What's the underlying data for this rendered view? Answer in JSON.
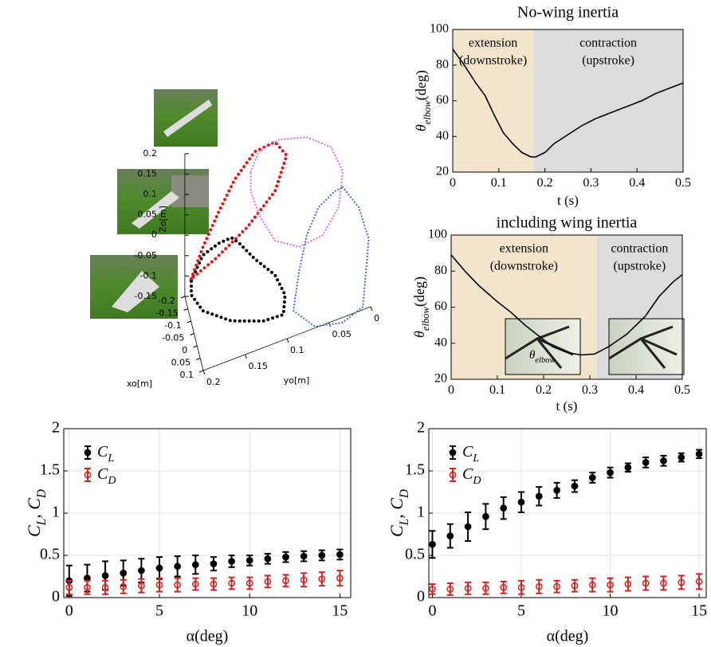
{
  "chart_data": [
    {
      "type": "scatter3d",
      "xlabel": "xo[m]",
      "ylabel": "yo[m]",
      "zlabel": "Zo[m]",
      "xlim": [
        -0.2,
        0.1
      ],
      "ylim": [
        0,
        0.2
      ],
      "zlim": [
        -0.15,
        0.2
      ],
      "xticks": [
        -0.2,
        -0.15,
        -0.1,
        -0.05,
        0,
        0.05,
        0.1
      ],
      "yticks": [
        0,
        0.05,
        0.1,
        0.15,
        0.2
      ],
      "zticks": [
        -0.15,
        -0.1,
        -0.05,
        0,
        0.05,
        0.1,
        0.15,
        0.2
      ],
      "series": [
        {
          "color": "#000000",
          "x": [
            0,
            0,
            0,
            0,
            0,
            0,
            0,
            0,
            0,
            0,
            0,
            0,
            0
          ],
          "y": [
            0.207,
            0.193,
            0.174,
            0.159,
            0.15,
            0.131,
            0.107,
            0.095,
            0.097,
            0.121,
            0.159,
            0.193,
            0.207
          ],
          "z": [
            0.016,
            0.067,
            0.081,
            0.083,
            0.063,
            0.009,
            -0.049,
            -0.107,
            -0.154,
            -0.151,
            -0.121,
            -0.07,
            -0.02
          ]
        },
        {
          "color": "#dd1a1a",
          "x": [
            0,
            0,
            0,
            0,
            0,
            0,
            0,
            0,
            0,
            0
          ],
          "y": [
            0.207,
            0.193,
            0.174,
            0.155,
            0.131,
            0.107,
            0.093,
            0.107,
            0.14,
            0.178
          ],
          "z": [
            0.02,
            0.087,
            0.159,
            0.223,
            0.272,
            0.277,
            0.233,
            0.156,
            0.094,
            0.046
          ]
        },
        {
          "color": "#e060e8",
          "x": [
            0,
            0,
            0,
            0,
            0,
            0,
            0,
            0,
            0,
            0,
            0,
            0
          ],
          "y": [
            0.136,
            0.126,
            0.102,
            0.069,
            0.04,
            0.026,
            0.031,
            0.05,
            0.078,
            0.107,
            0.126,
            0.136
          ],
          "z": [
            0.227,
            0.269,
            0.279,
            0.259,
            0.212,
            0.142,
            0.058,
            0.004,
            -0.003,
            0.035,
            0.113,
            0.179
          ]
        },
        {
          "color": "#3a5fe0",
          "x": [
            0,
            0,
            0,
            0,
            0,
            0,
            0,
            0,
            0,
            0,
            0,
            0
          ],
          "y": [
            0.026,
            0.007,
            -0.005,
            -0.001,
            0.002,
            0.026,
            0.059,
            0.085,
            0.078,
            0.069,
            0.055,
            0.036
          ],
          "z": [
            0.103,
            0.039,
            -0.048,
            -0.143,
            -0.209,
            -0.229,
            -0.213,
            -0.154,
            -0.061,
            0.019,
            0.076,
            0.1
          ]
        }
      ]
    },
    {
      "type": "line",
      "title": "No-wing inertia",
      "xlabel": "t (s)",
      "ylabel": {
        "symbol": "θ",
        "subscript": "elbow",
        "unit": "(deg)"
      },
      "xlim": [
        0,
        0.5
      ],
      "ylim": [
        20,
        100
      ],
      "xticks": [
        0,
        0.1,
        0.2,
        0.3,
        0.4,
        0.5
      ],
      "yticks": [
        20,
        40,
        60,
        80,
        100
      ],
      "regions": [
        {
          "label": [
            "extension",
            "(downstroke)"
          ],
          "xrange": [
            0,
            0.175
          ],
          "color": "#f3e5cc"
        },
        {
          "label": [
            "contraction",
            "(upstroke)"
          ],
          "xrange": [
            0.175,
            0.5
          ],
          "color": "#dcdcdc"
        }
      ],
      "x": [
        0,
        0.025,
        0.05,
        0.07,
        0.09,
        0.11,
        0.13,
        0.15,
        0.17,
        0.18,
        0.2,
        0.22,
        0.25,
        0.28,
        0.31,
        0.35,
        0.38,
        0.41,
        0.44,
        0.47,
        0.5
      ],
      "series": [
        {
          "color": "#000000",
          "values": [
            89,
            80,
            70,
            63,
            52,
            42,
            36,
            31,
            28.5,
            28.5,
            31,
            36,
            41,
            46,
            50,
            54,
            57,
            60,
            64,
            67,
            70
          ]
        }
      ]
    },
    {
      "type": "line",
      "title": "including wing inertia",
      "xlabel": "t (s)",
      "ylabel": {
        "symbol": "θ",
        "subscript": "elbow",
        "unit": "(deg)"
      },
      "xlim": [
        0,
        0.5
      ],
      "ylim": [
        20,
        100
      ],
      "xticks": [
        0,
        0.1,
        0.2,
        0.3,
        0.4,
        0.5
      ],
      "yticks": [
        20,
        40,
        60,
        80,
        100
      ],
      "regions": [
        {
          "label": [
            "extension",
            "(downstroke)"
          ],
          "xrange": [
            0,
            0.315
          ],
          "color": "#f3e5cc"
        },
        {
          "label": [
            "contraction",
            "(upstroke)"
          ],
          "xrange": [
            0.315,
            0.5
          ],
          "color": "#dcdcdc"
        }
      ],
      "inset_label": {
        "symbol": "θ",
        "subscript": "elbow"
      },
      "x": [
        0,
        0.03,
        0.06,
        0.1,
        0.13,
        0.16,
        0.19,
        0.22,
        0.25,
        0.28,
        0.31,
        0.34,
        0.38,
        0.42,
        0.45,
        0.48,
        0.5
      ],
      "series": [
        {
          "color": "#000000",
          "values": [
            89,
            80,
            72,
            63,
            57,
            50,
            44,
            38,
            35,
            33.5,
            34,
            38,
            45,
            55,
            66,
            74,
            78
          ]
        }
      ]
    },
    {
      "type": "errorbar",
      "xlabel": "α(deg)",
      "ylabel": [
        {
          "text": "C"
        },
        {
          "sub": "L"
        },
        {
          "text": ", C"
        },
        {
          "sub": "D"
        }
      ],
      "xlim": [
        -0.3,
        15.6
      ],
      "ylim": [
        0,
        2
      ],
      "xticks": [
        0,
        5,
        10,
        15
      ],
      "yticks": [
        0,
        0.5,
        1,
        1.5,
        2
      ],
      "grid": true,
      "legend": "upper left",
      "x": [
        0,
        1,
        2,
        3,
        4,
        5,
        6,
        7,
        8,
        9,
        10,
        11,
        12,
        13,
        14,
        15
      ],
      "series": [
        {
          "name": "C",
          "subscript": "L",
          "color": "#000000",
          "marker": "filled",
          "values": [
            0.2,
            0.23,
            0.26,
            0.29,
            0.32,
            0.35,
            0.37,
            0.39,
            0.4,
            0.43,
            0.44,
            0.46,
            0.48,
            0.49,
            0.5,
            0.51
          ],
          "errors": [
            0.18,
            0.16,
            0.17,
            0.15,
            0.14,
            0.13,
            0.12,
            0.11,
            0.08,
            0.07,
            0.06,
            0.06,
            0.06,
            0.06,
            0.06,
            0.06
          ]
        },
        {
          "name": "C",
          "subscript": "D",
          "color": "#d42020",
          "marker": "open",
          "values": [
            0.12,
            0.12,
            0.12,
            0.13,
            0.14,
            0.15,
            0.15,
            0.16,
            0.16,
            0.17,
            0.17,
            0.19,
            0.2,
            0.21,
            0.22,
            0.23
          ],
          "errors": [
            0.08,
            0.08,
            0.08,
            0.08,
            0.08,
            0.08,
            0.08,
            0.07,
            0.07,
            0.07,
            0.07,
            0.07,
            0.07,
            0.08,
            0.08,
            0.09
          ]
        }
      ]
    },
    {
      "type": "errorbar",
      "xlabel": "α(deg)",
      "ylabel": [
        {
          "text": "C"
        },
        {
          "sub": "L"
        },
        {
          "text": ", C"
        },
        {
          "sub": "D"
        }
      ],
      "xlim": [
        -0.2,
        15.4
      ],
      "ylim": [
        0,
        2
      ],
      "xticks": [
        0,
        5,
        10,
        15
      ],
      "yticks": [
        0,
        0.5,
        1,
        1.5,
        2
      ],
      "grid": true,
      "legend": "upper left",
      "x": [
        0,
        1,
        2,
        3,
        4,
        5,
        6,
        7,
        8,
        9,
        10,
        11,
        12,
        13,
        14,
        15
      ],
      "series": [
        {
          "name": "C",
          "subscript": "L",
          "color": "#000000",
          "marker": "filled",
          "values": [
            0.63,
            0.73,
            0.84,
            0.96,
            1.06,
            1.13,
            1.2,
            1.27,
            1.32,
            1.42,
            1.48,
            1.54,
            1.6,
            1.62,
            1.66,
            1.7
          ],
          "errors": [
            0.16,
            0.14,
            0.17,
            0.15,
            0.13,
            0.12,
            0.11,
            0.09,
            0.07,
            0.06,
            0.06,
            0.05,
            0.06,
            0.06,
            0.05,
            0.05
          ]
        },
        {
          "name": "C",
          "subscript": "D",
          "color": "#d42020",
          "marker": "open",
          "values": [
            0.1,
            0.1,
            0.11,
            0.11,
            0.12,
            0.12,
            0.13,
            0.13,
            0.14,
            0.15,
            0.15,
            0.16,
            0.17,
            0.17,
            0.18,
            0.19
          ],
          "errors": [
            0.06,
            0.07,
            0.07,
            0.07,
            0.07,
            0.08,
            0.08,
            0.07,
            0.07,
            0.08,
            0.08,
            0.08,
            0.08,
            0.08,
            0.08,
            0.09
          ]
        }
      ]
    }
  ]
}
